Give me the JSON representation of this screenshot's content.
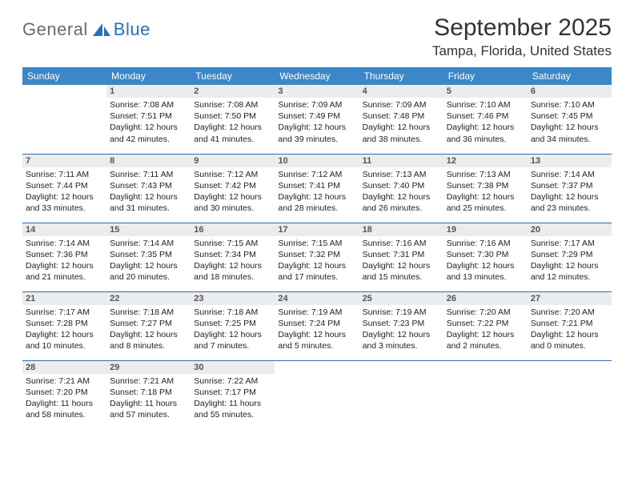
{
  "logo": {
    "word1": "General",
    "word2": "Blue",
    "sail_color": "#2a6fb5"
  },
  "title": {
    "month": "September 2025",
    "location": "Tampa, Florida, United States"
  },
  "colors": {
    "header_bg": "#3b87c8",
    "header_text": "#ffffff",
    "rule": "#2a6fb5",
    "daynum_bg": "#ececec"
  },
  "daysOfWeek": [
    "Sunday",
    "Monday",
    "Tuesday",
    "Wednesday",
    "Thursday",
    "Friday",
    "Saturday"
  ],
  "weeks": [
    [
      null,
      {
        "n": "1",
        "sr": "Sunrise: 7:08 AM",
        "ss": "Sunset: 7:51 PM",
        "d1": "Daylight: 12 hours",
        "d2": "and 42 minutes."
      },
      {
        "n": "2",
        "sr": "Sunrise: 7:08 AM",
        "ss": "Sunset: 7:50 PM",
        "d1": "Daylight: 12 hours",
        "d2": "and 41 minutes."
      },
      {
        "n": "3",
        "sr": "Sunrise: 7:09 AM",
        "ss": "Sunset: 7:49 PM",
        "d1": "Daylight: 12 hours",
        "d2": "and 39 minutes."
      },
      {
        "n": "4",
        "sr": "Sunrise: 7:09 AM",
        "ss": "Sunset: 7:48 PM",
        "d1": "Daylight: 12 hours",
        "d2": "and 38 minutes."
      },
      {
        "n": "5",
        "sr": "Sunrise: 7:10 AM",
        "ss": "Sunset: 7:46 PM",
        "d1": "Daylight: 12 hours",
        "d2": "and 36 minutes."
      },
      {
        "n": "6",
        "sr": "Sunrise: 7:10 AM",
        "ss": "Sunset: 7:45 PM",
        "d1": "Daylight: 12 hours",
        "d2": "and 34 minutes."
      }
    ],
    [
      {
        "n": "7",
        "sr": "Sunrise: 7:11 AM",
        "ss": "Sunset: 7:44 PM",
        "d1": "Daylight: 12 hours",
        "d2": "and 33 minutes."
      },
      {
        "n": "8",
        "sr": "Sunrise: 7:11 AM",
        "ss": "Sunset: 7:43 PM",
        "d1": "Daylight: 12 hours",
        "d2": "and 31 minutes."
      },
      {
        "n": "9",
        "sr": "Sunrise: 7:12 AM",
        "ss": "Sunset: 7:42 PM",
        "d1": "Daylight: 12 hours",
        "d2": "and 30 minutes."
      },
      {
        "n": "10",
        "sr": "Sunrise: 7:12 AM",
        "ss": "Sunset: 7:41 PM",
        "d1": "Daylight: 12 hours",
        "d2": "and 28 minutes."
      },
      {
        "n": "11",
        "sr": "Sunrise: 7:13 AM",
        "ss": "Sunset: 7:40 PM",
        "d1": "Daylight: 12 hours",
        "d2": "and 26 minutes."
      },
      {
        "n": "12",
        "sr": "Sunrise: 7:13 AM",
        "ss": "Sunset: 7:38 PM",
        "d1": "Daylight: 12 hours",
        "d2": "and 25 minutes."
      },
      {
        "n": "13",
        "sr": "Sunrise: 7:14 AM",
        "ss": "Sunset: 7:37 PM",
        "d1": "Daylight: 12 hours",
        "d2": "and 23 minutes."
      }
    ],
    [
      {
        "n": "14",
        "sr": "Sunrise: 7:14 AM",
        "ss": "Sunset: 7:36 PM",
        "d1": "Daylight: 12 hours",
        "d2": "and 21 minutes."
      },
      {
        "n": "15",
        "sr": "Sunrise: 7:14 AM",
        "ss": "Sunset: 7:35 PM",
        "d1": "Daylight: 12 hours",
        "d2": "and 20 minutes."
      },
      {
        "n": "16",
        "sr": "Sunrise: 7:15 AM",
        "ss": "Sunset: 7:34 PM",
        "d1": "Daylight: 12 hours",
        "d2": "and 18 minutes."
      },
      {
        "n": "17",
        "sr": "Sunrise: 7:15 AM",
        "ss": "Sunset: 7:32 PM",
        "d1": "Daylight: 12 hours",
        "d2": "and 17 minutes."
      },
      {
        "n": "18",
        "sr": "Sunrise: 7:16 AM",
        "ss": "Sunset: 7:31 PM",
        "d1": "Daylight: 12 hours",
        "d2": "and 15 minutes."
      },
      {
        "n": "19",
        "sr": "Sunrise: 7:16 AM",
        "ss": "Sunset: 7:30 PM",
        "d1": "Daylight: 12 hours",
        "d2": "and 13 minutes."
      },
      {
        "n": "20",
        "sr": "Sunrise: 7:17 AM",
        "ss": "Sunset: 7:29 PM",
        "d1": "Daylight: 12 hours",
        "d2": "and 12 minutes."
      }
    ],
    [
      {
        "n": "21",
        "sr": "Sunrise: 7:17 AM",
        "ss": "Sunset: 7:28 PM",
        "d1": "Daylight: 12 hours",
        "d2": "and 10 minutes."
      },
      {
        "n": "22",
        "sr": "Sunrise: 7:18 AM",
        "ss": "Sunset: 7:27 PM",
        "d1": "Daylight: 12 hours",
        "d2": "and 8 minutes."
      },
      {
        "n": "23",
        "sr": "Sunrise: 7:18 AM",
        "ss": "Sunset: 7:25 PM",
        "d1": "Daylight: 12 hours",
        "d2": "and 7 minutes."
      },
      {
        "n": "24",
        "sr": "Sunrise: 7:19 AM",
        "ss": "Sunset: 7:24 PM",
        "d1": "Daylight: 12 hours",
        "d2": "and 5 minutes."
      },
      {
        "n": "25",
        "sr": "Sunrise: 7:19 AM",
        "ss": "Sunset: 7:23 PM",
        "d1": "Daylight: 12 hours",
        "d2": "and 3 minutes."
      },
      {
        "n": "26",
        "sr": "Sunrise: 7:20 AM",
        "ss": "Sunset: 7:22 PM",
        "d1": "Daylight: 12 hours",
        "d2": "and 2 minutes."
      },
      {
        "n": "27",
        "sr": "Sunrise: 7:20 AM",
        "ss": "Sunset: 7:21 PM",
        "d1": "Daylight: 12 hours",
        "d2": "and 0 minutes."
      }
    ],
    [
      {
        "n": "28",
        "sr": "Sunrise: 7:21 AM",
        "ss": "Sunset: 7:20 PM",
        "d1": "Daylight: 11 hours",
        "d2": "and 58 minutes."
      },
      {
        "n": "29",
        "sr": "Sunrise: 7:21 AM",
        "ss": "Sunset: 7:18 PM",
        "d1": "Daylight: 11 hours",
        "d2": "and 57 minutes."
      },
      {
        "n": "30",
        "sr": "Sunrise: 7:22 AM",
        "ss": "Sunset: 7:17 PM",
        "d1": "Daylight: 11 hours",
        "d2": "and 55 minutes."
      },
      null,
      null,
      null,
      null
    ]
  ]
}
